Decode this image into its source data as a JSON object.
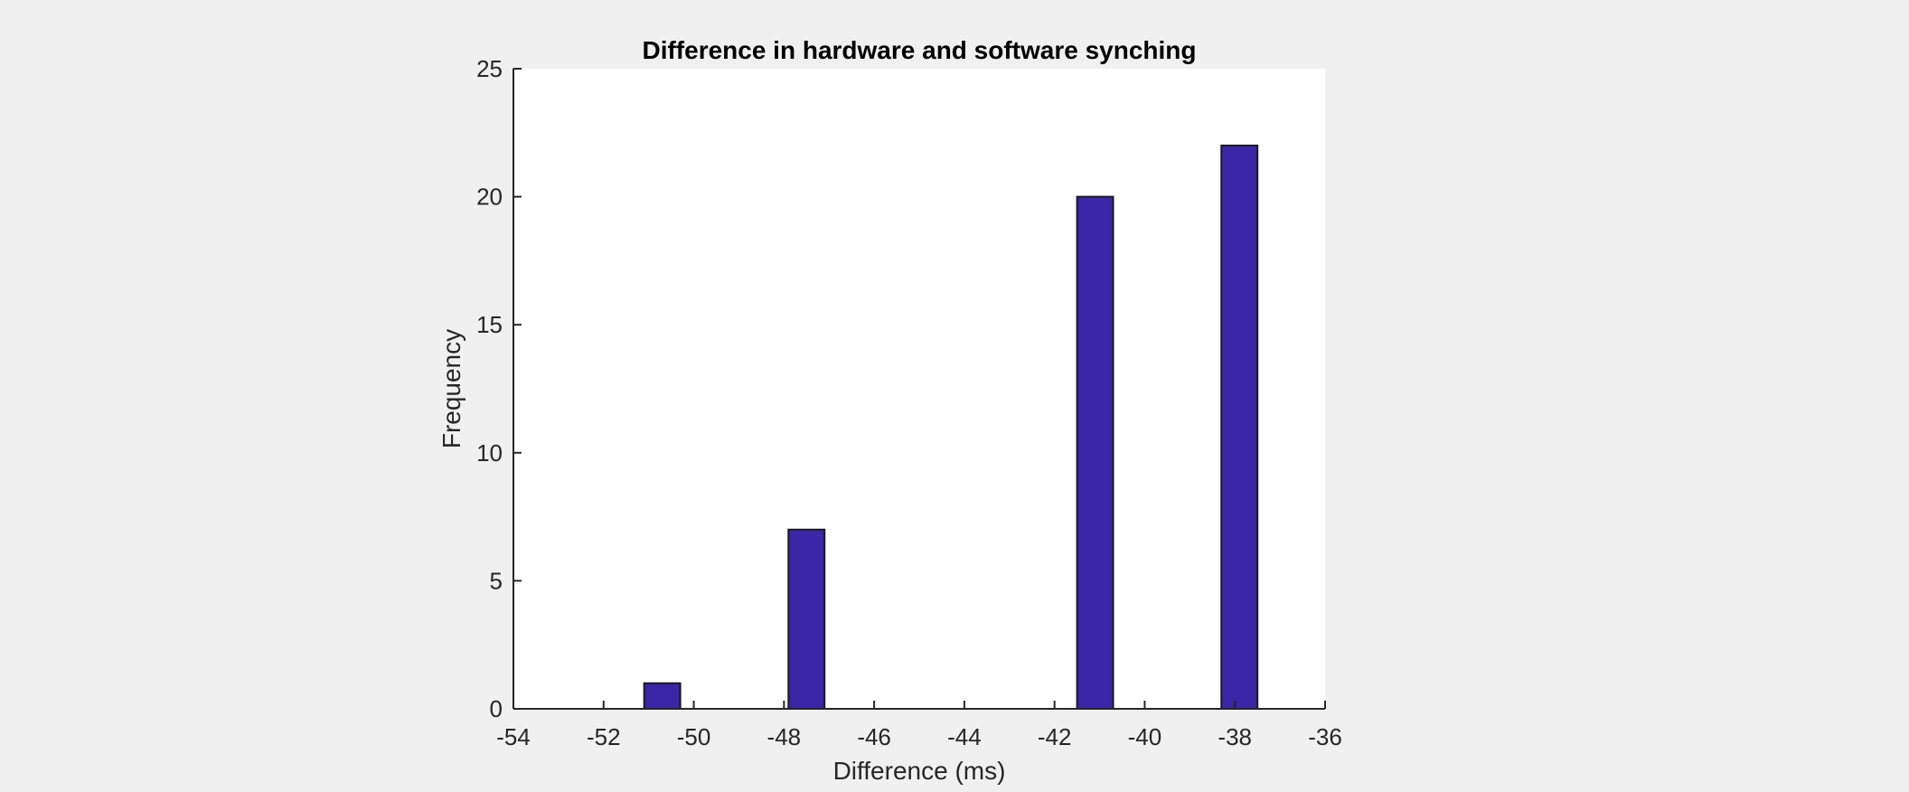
{
  "chart_data": {
    "type": "bar",
    "title": "Difference in hardware and software synching",
    "xlabel": "Difference (ms)",
    "ylabel": "Frequency",
    "xlim": [
      -54,
      -36
    ],
    "ylim": [
      0,
      25
    ],
    "xticks": [
      -54,
      -52,
      -50,
      -48,
      -46,
      -44,
      -42,
      -40,
      -38,
      -36
    ],
    "yticks": [
      0,
      5,
      10,
      15,
      20,
      25
    ],
    "bin_width": 1.6,
    "bin_edges": [
      -53.1,
      -51.5,
      -49.9,
      -48.3,
      -46.7,
      -45.1,
      -43.5,
      -41.9,
      -40.3,
      -38.7,
      -37.1
    ],
    "bar_width_fraction": 0.5,
    "values": [
      0,
      1,
      0,
      7,
      0,
      0,
      0,
      20,
      0,
      22
    ],
    "grid": false,
    "colors": {
      "bar_fill": "#3a26a7",
      "bar_edge": "#1a1a1a",
      "plot_background": "#ffffff",
      "figure_background": "#f0f0f0",
      "axis": "#262626"
    }
  }
}
